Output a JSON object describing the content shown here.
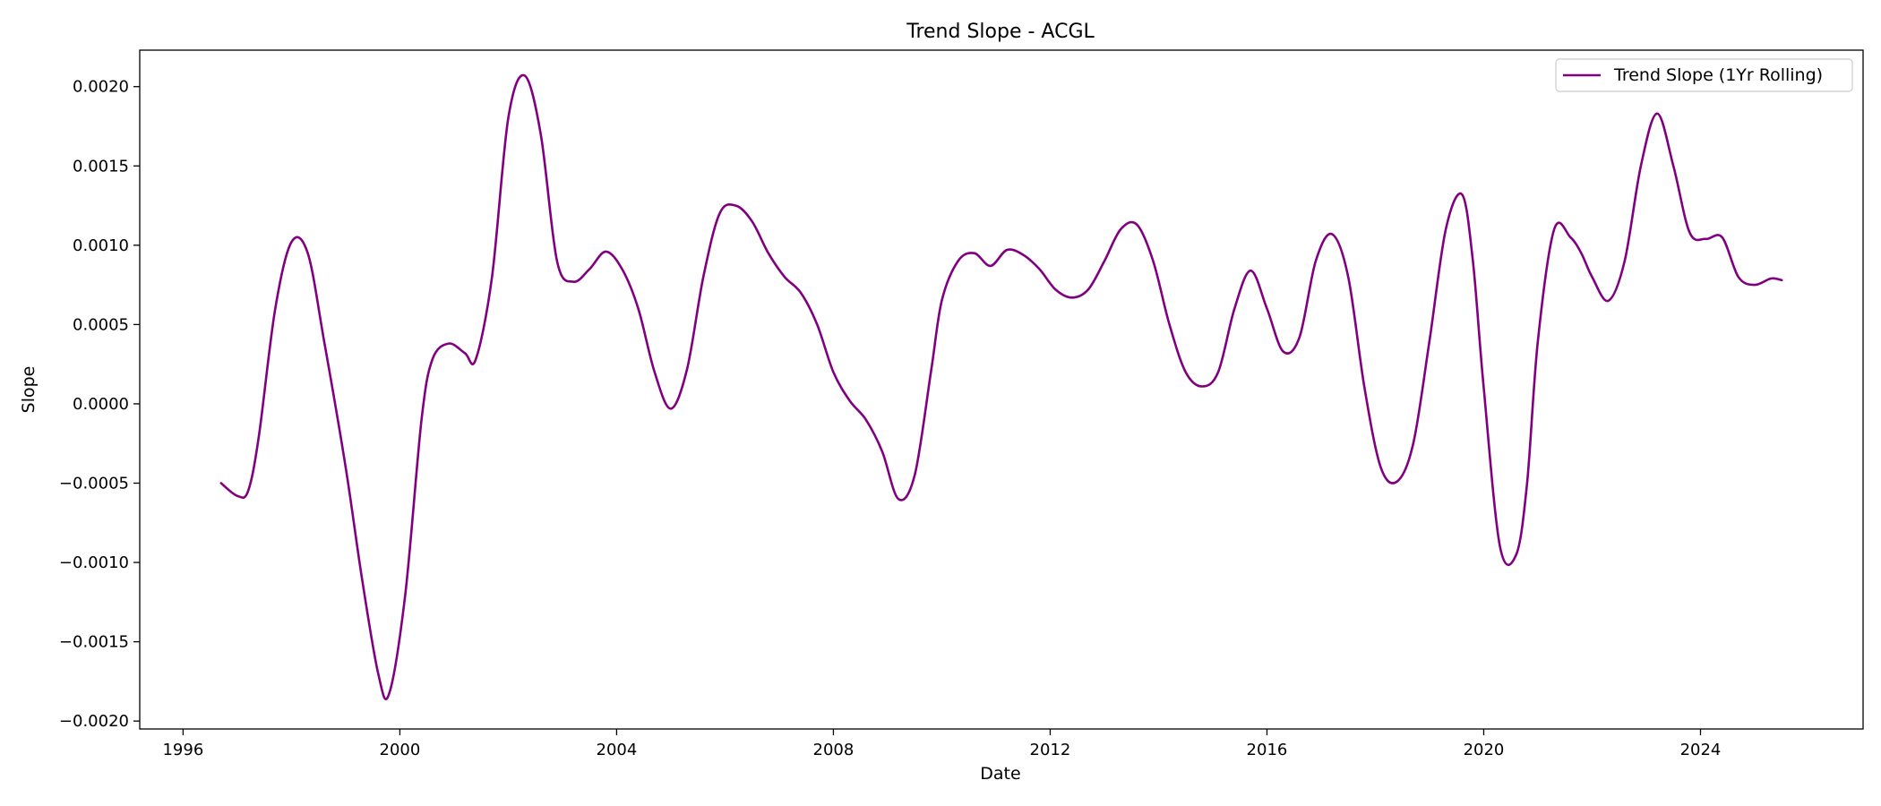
{
  "chart_data": {
    "type": "line",
    "title": "Trend Slope - ACGL",
    "xlabel": "Date",
    "ylabel": "Slope",
    "xlim": [
      1995.2,
      2027.0
    ],
    "ylim": [
      -0.00205,
      0.00223
    ],
    "xticks": [
      1996,
      2000,
      2004,
      2008,
      2012,
      2016,
      2020,
      2024
    ],
    "yticks": [
      {
        "value": 0.002,
        "label": "0.0020"
      },
      {
        "value": 0.0015,
        "label": "0.0015"
      },
      {
        "value": 0.001,
        "label": "0.0010"
      },
      {
        "value": 0.0005,
        "label": "0.0005"
      },
      {
        "value": 0.0,
        "label": "0.0000"
      },
      {
        "value": -0.0005,
        "label": "−0.0005"
      },
      {
        "value": -0.001,
        "label": "−0.0010"
      },
      {
        "value": -0.0015,
        "label": "−0.0015"
      },
      {
        "value": -0.002,
        "label": "−0.0020"
      }
    ],
    "grid": false,
    "legend_position": "top-right",
    "series": [
      {
        "name": "Trend Slope (1Yr Rolling)",
        "color": "#800080",
        "x": [
          1996.7,
          1997.0,
          1997.2,
          1997.4,
          1997.7,
          1998.0,
          1998.3,
          1998.6,
          1999.0,
          1999.3,
          1999.6,
          1999.8,
          2000.1,
          2000.4,
          2000.6,
          2000.9,
          2001.2,
          2001.4,
          2001.7,
          2002.0,
          2002.3,
          2002.6,
          2002.9,
          2003.2,
          2003.5,
          2003.8,
          2004.1,
          2004.4,
          2004.7,
          2005.0,
          2005.3,
          2005.6,
          2005.9,
          2006.2,
          2006.5,
          2006.8,
          2007.1,
          2007.4,
          2007.7,
          2008.0,
          2008.3,
          2008.6,
          2008.9,
          2009.2,
          2009.5,
          2009.8,
          2010.0,
          2010.3,
          2010.6,
          2010.9,
          2011.2,
          2011.5,
          2011.8,
          2012.1,
          2012.4,
          2012.7,
          2013.0,
          2013.3,
          2013.6,
          2013.9,
          2014.2,
          2014.5,
          2014.8,
          2015.1,
          2015.4,
          2015.7,
          2016.0,
          2016.3,
          2016.6,
          2016.9,
          2017.2,
          2017.5,
          2017.8,
          2018.1,
          2018.4,
          2018.7,
          2019.0,
          2019.3,
          2019.6,
          2019.8,
          2020.0,
          2020.3,
          2020.6,
          2020.8,
          2021.0,
          2021.3,
          2021.6,
          2021.8,
          2022.0,
          2022.3,
          2022.6,
          2022.9,
          2023.2,
          2023.5,
          2023.8,
          2024.1,
          2024.4,
          2024.7,
          2025.0,
          2025.3,
          2025.5
        ],
        "y": [
          -0.0005,
          -0.00058,
          -0.00055,
          -0.0002,
          0.0006,
          0.00102,
          0.00095,
          0.0004,
          -0.0004,
          -0.0011,
          -0.0017,
          -0.00183,
          -0.0012,
          -0.0001,
          0.00028,
          0.00038,
          0.00032,
          0.00028,
          0.0008,
          0.0018,
          0.00207,
          0.0017,
          0.0009,
          0.00077,
          0.00085,
          0.00096,
          0.00085,
          0.0006,
          0.0002,
          -3e-05,
          0.00022,
          0.0008,
          0.0012,
          0.00125,
          0.00115,
          0.00095,
          0.0008,
          0.0007,
          0.0005,
          0.0002,
          2e-05,
          -0.0001,
          -0.0003,
          -0.0006,
          -0.00045,
          0.0002,
          0.00065,
          0.0009,
          0.00095,
          0.00087,
          0.00097,
          0.00094,
          0.00085,
          0.00072,
          0.00067,
          0.00072,
          0.0009,
          0.0011,
          0.00113,
          0.0009,
          0.0005,
          0.0002,
          0.00011,
          0.0002,
          0.0006,
          0.00084,
          0.0006,
          0.00033,
          0.00042,
          0.0009,
          0.00107,
          0.0008,
          0.0001,
          -0.0004,
          -0.00049,
          -0.00025,
          0.0004,
          0.0011,
          0.00132,
          0.0009,
          0.0001,
          -0.0009,
          -0.00095,
          -0.0005,
          0.0004,
          0.0011,
          0.00105,
          0.00095,
          0.0008,
          0.00065,
          0.0009,
          0.0015,
          0.00183,
          0.0015,
          0.00108,
          0.00104,
          0.00105,
          0.0008,
          0.00075,
          0.00079,
          0.00078
        ]
      }
    ]
  }
}
